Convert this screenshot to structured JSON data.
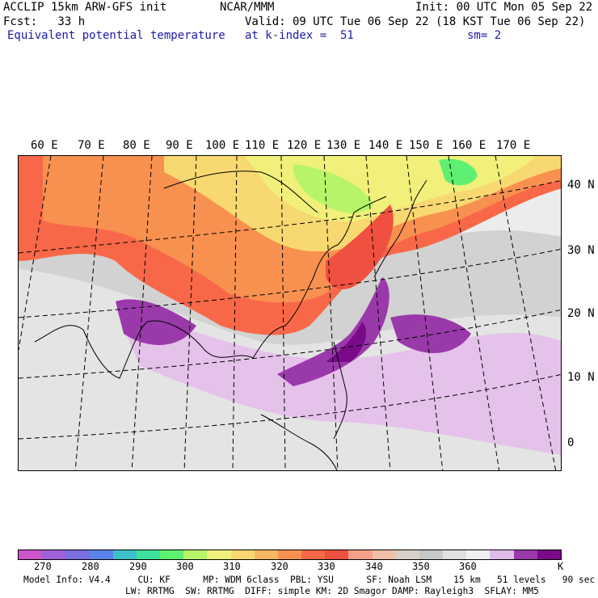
{
  "header": {
    "line1_left": "ACCLIP 15km ARW-GFS init",
    "line1_center": "NCAR/MMM",
    "line1_right": "Init: 00 UTC Mon 05 Sep 22",
    "line2_left": "Fcst:   33 h",
    "line2_right": "Valid: 09 UTC Tue 06 Sep 22 (18 KST Tue 06 Sep 22)",
    "line3_left": "Equivalent potential temperature",
    "line3_center": "at k-index =  51",
    "line3_right": "sm= 2"
  },
  "map": {
    "lon_labels": [
      "60 E",
      "70 E",
      "80 E",
      "90 E",
      "100 E",
      "110 E",
      "120 E",
      "130 E",
      "140 E",
      "150 E",
      "160 E",
      "170 E"
    ],
    "lat_labels": [
      "40 N",
      "30 N",
      "20 N",
      "10 N",
      "0"
    ]
  },
  "colorbar": {
    "colors": [
      "#cc55cc",
      "#a060d8",
      "#7a6ee0",
      "#5a82e8",
      "#3ec0c8",
      "#3ee09a",
      "#5ef070",
      "#b8f468",
      "#f0f07a",
      "#f8d870",
      "#f8b860",
      "#f89050",
      "#f86848",
      "#f05040",
      "#f8a08a",
      "#f0c0a8",
      "#d8d0c8",
      "#c8c8c8",
      "#e0e0e0",
      "#f0f0f0",
      "#e0bce8",
      "#9a3aaa",
      "#7a0a8a"
    ],
    "ticks": [
      "270",
      "280",
      "290",
      "300",
      "310",
      "320",
      "330",
      "340",
      "350",
      "360"
    ],
    "unit": "K"
  },
  "footer": {
    "line1": "Model Info: V4.4     CU: KF      MP: WDM 6class  PBL: YSU      SF: Noah LSM    15 km   51 levels   90 sec",
    "line2": "LW: RRTMG  SW: RRTMG  DIFF: simple KM: 2D Smagor DAMP: Rayleigh3  SFLAY: MM5"
  }
}
